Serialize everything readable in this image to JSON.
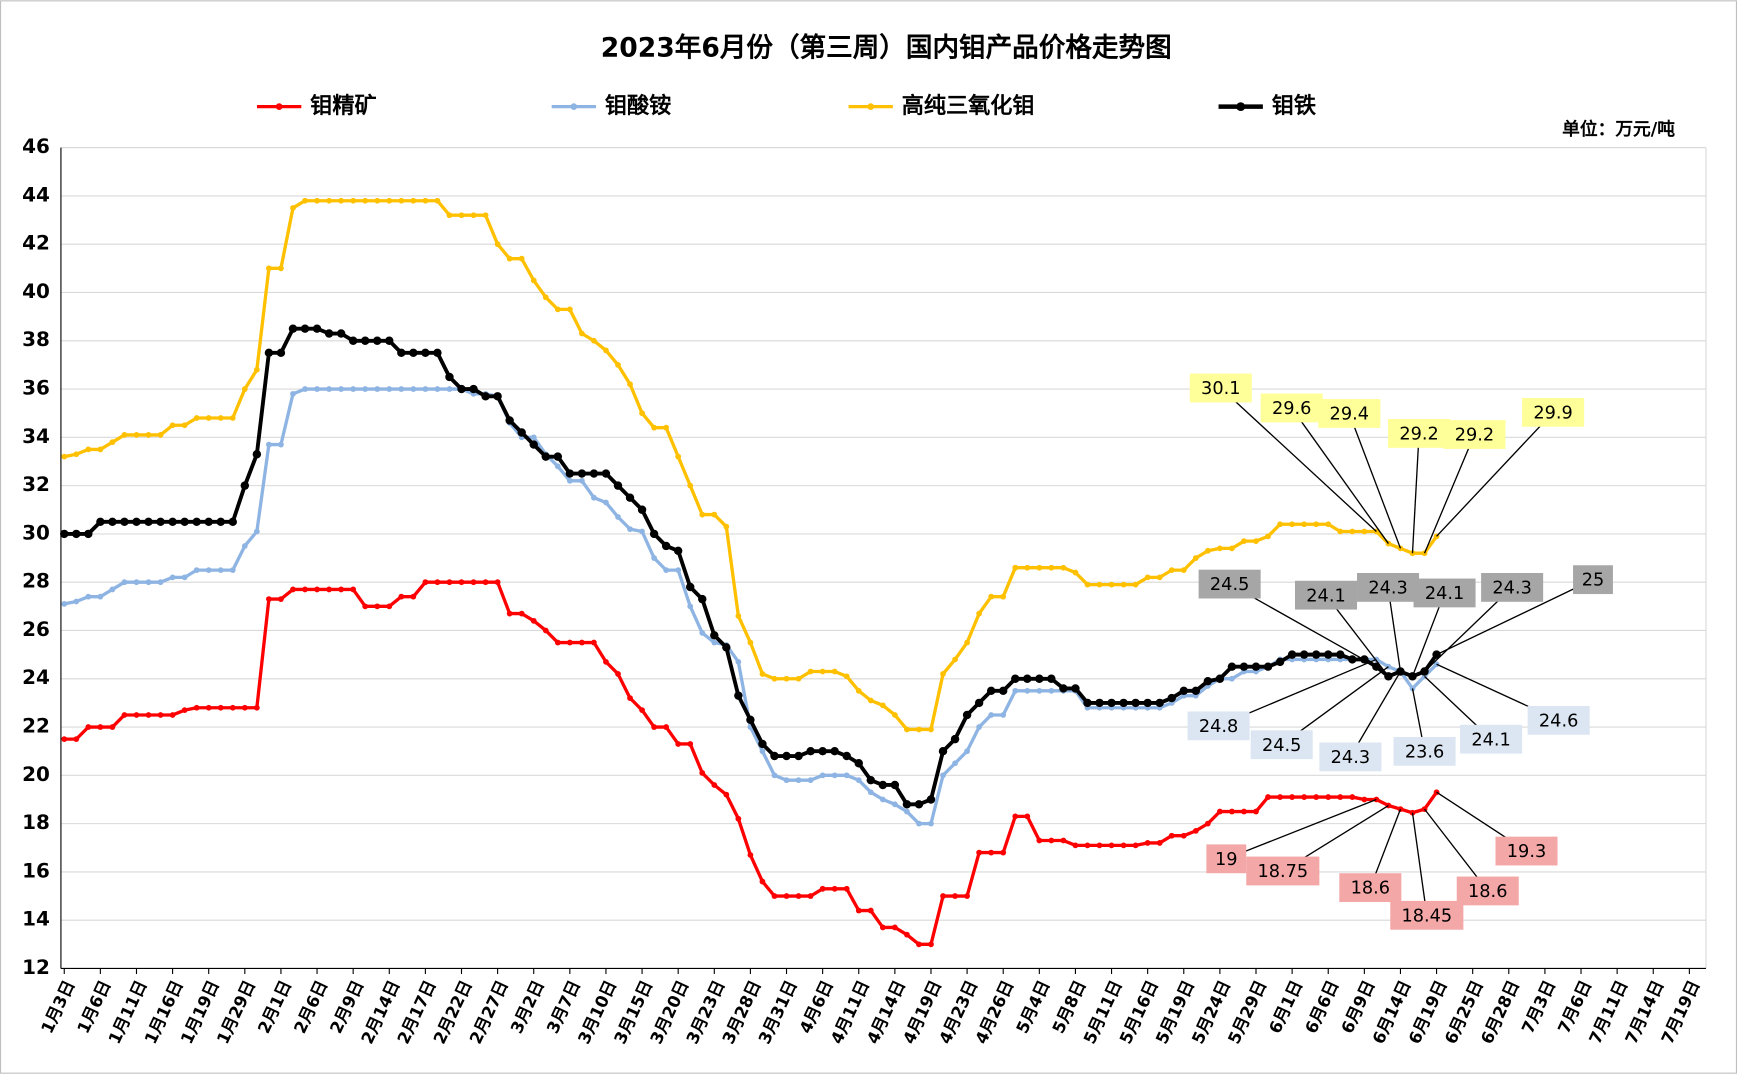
{
  "chart_data": {
    "type": "line",
    "title": "2023年6月份（第三周）国内钼产品价格走势图",
    "unit_label": "单位：万元/吨",
    "ylim": [
      12,
      46
    ],
    "yticks": [
      12,
      14,
      16,
      18,
      20,
      22,
      24,
      26,
      28,
      30,
      32,
      34,
      36,
      38,
      40,
      42,
      44,
      46
    ],
    "grid": true,
    "legend": "top",
    "categories": [
      "1月3日",
      null,
      null,
      "1月6日",
      null,
      null,
      "1月11日",
      null,
      null,
      "1月16日",
      null,
      null,
      "1月19日",
      null,
      null,
      "1月29日",
      null,
      null,
      "2月1日",
      null,
      null,
      "2月6日",
      null,
      null,
      "2月9日",
      null,
      null,
      "2月14日",
      null,
      null,
      "2月17日",
      null,
      null,
      "2月22日",
      null,
      null,
      "2月27日",
      null,
      null,
      "3月2日",
      null,
      null,
      "3月7日",
      null,
      null,
      "3月10日",
      null,
      null,
      "3月15日",
      null,
      null,
      "3月20日",
      null,
      null,
      "3月23日",
      null,
      null,
      "3月28日",
      null,
      null,
      "3月31日",
      null,
      null,
      "4月6日",
      null,
      null,
      "4月11日",
      null,
      null,
      "4月14日",
      null,
      null,
      "4月19日",
      null,
      null,
      "4月23日",
      null,
      null,
      "4月26日",
      null,
      null,
      "5月4日",
      null,
      null,
      "5月8日",
      null,
      null,
      "5月11日",
      null,
      null,
      "5月16日",
      null,
      null,
      "5月19日",
      null,
      null,
      "5月24日",
      null,
      null,
      "5月29日",
      null,
      null,
      "6月1日",
      null,
      null,
      "6月6日",
      null,
      null,
      "6月9日",
      null,
      null,
      "6月14日",
      null,
      null,
      "6月19日",
      null,
      null,
      "6月25日",
      null,
      null,
      "6月28日",
      null,
      null,
      "7月3日",
      null,
      null,
      "7月6日",
      null,
      null,
      "7月11日",
      null,
      null,
      "7月14日",
      null,
      null,
      "7月19日",
      null
    ],
    "series": [
      {
        "name": "钼精矿",
        "color": "#ff0000",
        "label_color": "#f4a7a7",
        "values": [
          21.5,
          21.5,
          22,
          22,
          22,
          22.5,
          22.5,
          22.5,
          22.5,
          22.5,
          22.7,
          22.8,
          22.8,
          22.8,
          22.8,
          22.8,
          22.8,
          27.3,
          27.3,
          27.7,
          27.7,
          27.7,
          27.7,
          27.7,
          27.7,
          27,
          27,
          27,
          27.4,
          27.4,
          28,
          28,
          28,
          28,
          28,
          28,
          28,
          26.7,
          26.7,
          26.4,
          26,
          25.5,
          25.5,
          25.5,
          25.5,
          24.7,
          24.2,
          23.2,
          22.7,
          22,
          22,
          21.3,
          21.3,
          20.1,
          19.6,
          19.2,
          18.2,
          16.7,
          15.6,
          15,
          15,
          15,
          15,
          15.3,
          15.3,
          15.3,
          14.4,
          14.4,
          13.7,
          13.7,
          13.4,
          13,
          13,
          15,
          15,
          15,
          16.8,
          16.8,
          16.8,
          18.3,
          18.3,
          17.3,
          17.3,
          17.3,
          17.1,
          17.1,
          17.1,
          17.1,
          17.1,
          17.1,
          17.2,
          17.2,
          17.5,
          17.5,
          17.7,
          18,
          18.5,
          18.5,
          18.5,
          18.5,
          19.1,
          19.1,
          19.1,
          19.1,
          19.1,
          19.1,
          19.1,
          19.1,
          19,
          19,
          18.75,
          18.6,
          18.45,
          18.6,
          19.3,
          null,
          null,
          null,
          null,
          null,
          null,
          null,
          null,
          null,
          null,
          null,
          null,
          null,
          null,
          null,
          null,
          null,
          null,
          null,
          null,
          null,
          null
        ]
      },
      {
        "name": "钼酸铵",
        "color": "#8eb4e3",
        "label_color": "#dce6f2",
        "values": [
          27.1,
          27.2,
          27.4,
          27.4,
          27.7,
          28,
          28,
          28,
          28,
          28.2,
          28.2,
          28.5,
          28.5,
          28.5,
          28.5,
          29.5,
          30.1,
          33.7,
          33.7,
          35.8,
          36,
          36,
          36,
          36,
          36,
          36,
          36,
          36,
          36,
          36,
          36,
          36,
          36,
          36,
          35.8,
          35.8,
          35.7,
          34.6,
          34,
          34,
          33.3,
          32.8,
          32.2,
          32.2,
          31.5,
          31.3,
          30.7,
          30.2,
          30.1,
          29,
          28.5,
          28.5,
          27,
          25.9,
          25.5,
          25.4,
          24.7,
          22,
          21,
          20,
          19.8,
          19.8,
          19.8,
          20,
          20,
          20,
          19.8,
          19.3,
          19,
          18.8,
          18.5,
          18,
          18,
          20,
          20.5,
          21,
          22,
          22.5,
          22.5,
          23.5,
          23.5,
          23.5,
          23.5,
          23.5,
          23.5,
          22.8,
          22.8,
          22.8,
          22.8,
          22.8,
          22.8,
          22.8,
          23,
          23.3,
          23.3,
          23.7,
          24,
          24,
          24.3,
          24.3,
          24.5,
          24.8,
          24.8,
          24.8,
          24.8,
          24.8,
          24.8,
          24.8,
          24.8,
          24.8,
          24.5,
          24.3,
          23.6,
          24.1,
          24.6,
          null,
          null,
          null,
          null,
          null,
          null,
          null,
          null,
          null,
          null,
          null,
          null,
          null,
          null,
          null,
          null,
          null,
          null,
          null,
          null,
          null,
          null
        ]
      },
      {
        "name": "高纯三氧化钼",
        "color": "#ffc000",
        "label_color": "#ffff99",
        "values": [
          33.2,
          33.3,
          33.5,
          33.5,
          33.8,
          34.1,
          34.1,
          34.1,
          34.1,
          34.5,
          34.5,
          34.8,
          34.8,
          34.8,
          34.8,
          36,
          36.8,
          41,
          41,
          43.5,
          43.8,
          43.8,
          43.8,
          43.8,
          43.8,
          43.8,
          43.8,
          43.8,
          43.8,
          43.8,
          43.8,
          43.8,
          43.2,
          43.2,
          43.2,
          43.2,
          42,
          41.4,
          41.4,
          40.5,
          39.8,
          39.3,
          39.3,
          38.3,
          38,
          37.6,
          37,
          36.2,
          35,
          34.4,
          34.4,
          33.2,
          32,
          30.8,
          30.8,
          30.3,
          26.6,
          25.5,
          24.2,
          24,
          24,
          24,
          24.3,
          24.3,
          24.3,
          24.1,
          23.5,
          23.1,
          22.9,
          22.5,
          21.9,
          21.9,
          21.9,
          24.2,
          24.8,
          25.5,
          26.7,
          27.4,
          27.4,
          28.6,
          28.6,
          28.6,
          28.6,
          28.6,
          28.4,
          27.9,
          27.9,
          27.9,
          27.9,
          27.9,
          28.2,
          28.2,
          28.5,
          28.5,
          29,
          29.3,
          29.4,
          29.4,
          29.7,
          29.7,
          29.9,
          30.4,
          30.4,
          30.4,
          30.4,
          30.4,
          30.1,
          30.1,
          30.1,
          30.1,
          29.6,
          29.4,
          29.2,
          29.2,
          29.9,
          null,
          null,
          null,
          null,
          null,
          null,
          null,
          null,
          null,
          null,
          null,
          null,
          null,
          null,
          null,
          null,
          null,
          null,
          null,
          null,
          null,
          null
        ]
      },
      {
        "name": "钼铁",
        "color": "#000000",
        "label_color": "#a6a6a6",
        "values": [
          30,
          30,
          30,
          30.5,
          30.5,
          30.5,
          30.5,
          30.5,
          30.5,
          30.5,
          30.5,
          30.5,
          30.5,
          30.5,
          30.5,
          32,
          33.3,
          37.5,
          37.5,
          38.5,
          38.5,
          38.5,
          38.3,
          38.3,
          38,
          38,
          38,
          38,
          37.5,
          37.5,
          37.5,
          37.5,
          36.5,
          36,
          36,
          35.7,
          35.7,
          34.7,
          34.2,
          33.7,
          33.2,
          33.2,
          32.5,
          32.5,
          32.5,
          32.5,
          32,
          31.5,
          31,
          30,
          29.5,
          29.3,
          27.8,
          27.3,
          25.8,
          25.3,
          23.3,
          22.3,
          21.3,
          20.8,
          20.8,
          20.8,
          21,
          21,
          21,
          20.8,
          20.5,
          19.8,
          19.6,
          19.6,
          18.8,
          18.8,
          19,
          21,
          21.5,
          22.5,
          23,
          23.5,
          23.5,
          24,
          24,
          24,
          24,
          23.6,
          23.6,
          23,
          23,
          23,
          23,
          23,
          23,
          23,
          23.2,
          23.5,
          23.5,
          23.9,
          24,
          24.5,
          24.5,
          24.5,
          24.5,
          24.7,
          25,
          25,
          25,
          25,
          25,
          24.8,
          24.8,
          24.5,
          24.1,
          24.3,
          24.1,
          24.3,
          25,
          null,
          null,
          null,
          null,
          null,
          null,
          null,
          null,
          null,
          null,
          null,
          null,
          null,
          null,
          null,
          null,
          null,
          null,
          null,
          null,
          null,
          null
        ]
      }
    ]
  }
}
